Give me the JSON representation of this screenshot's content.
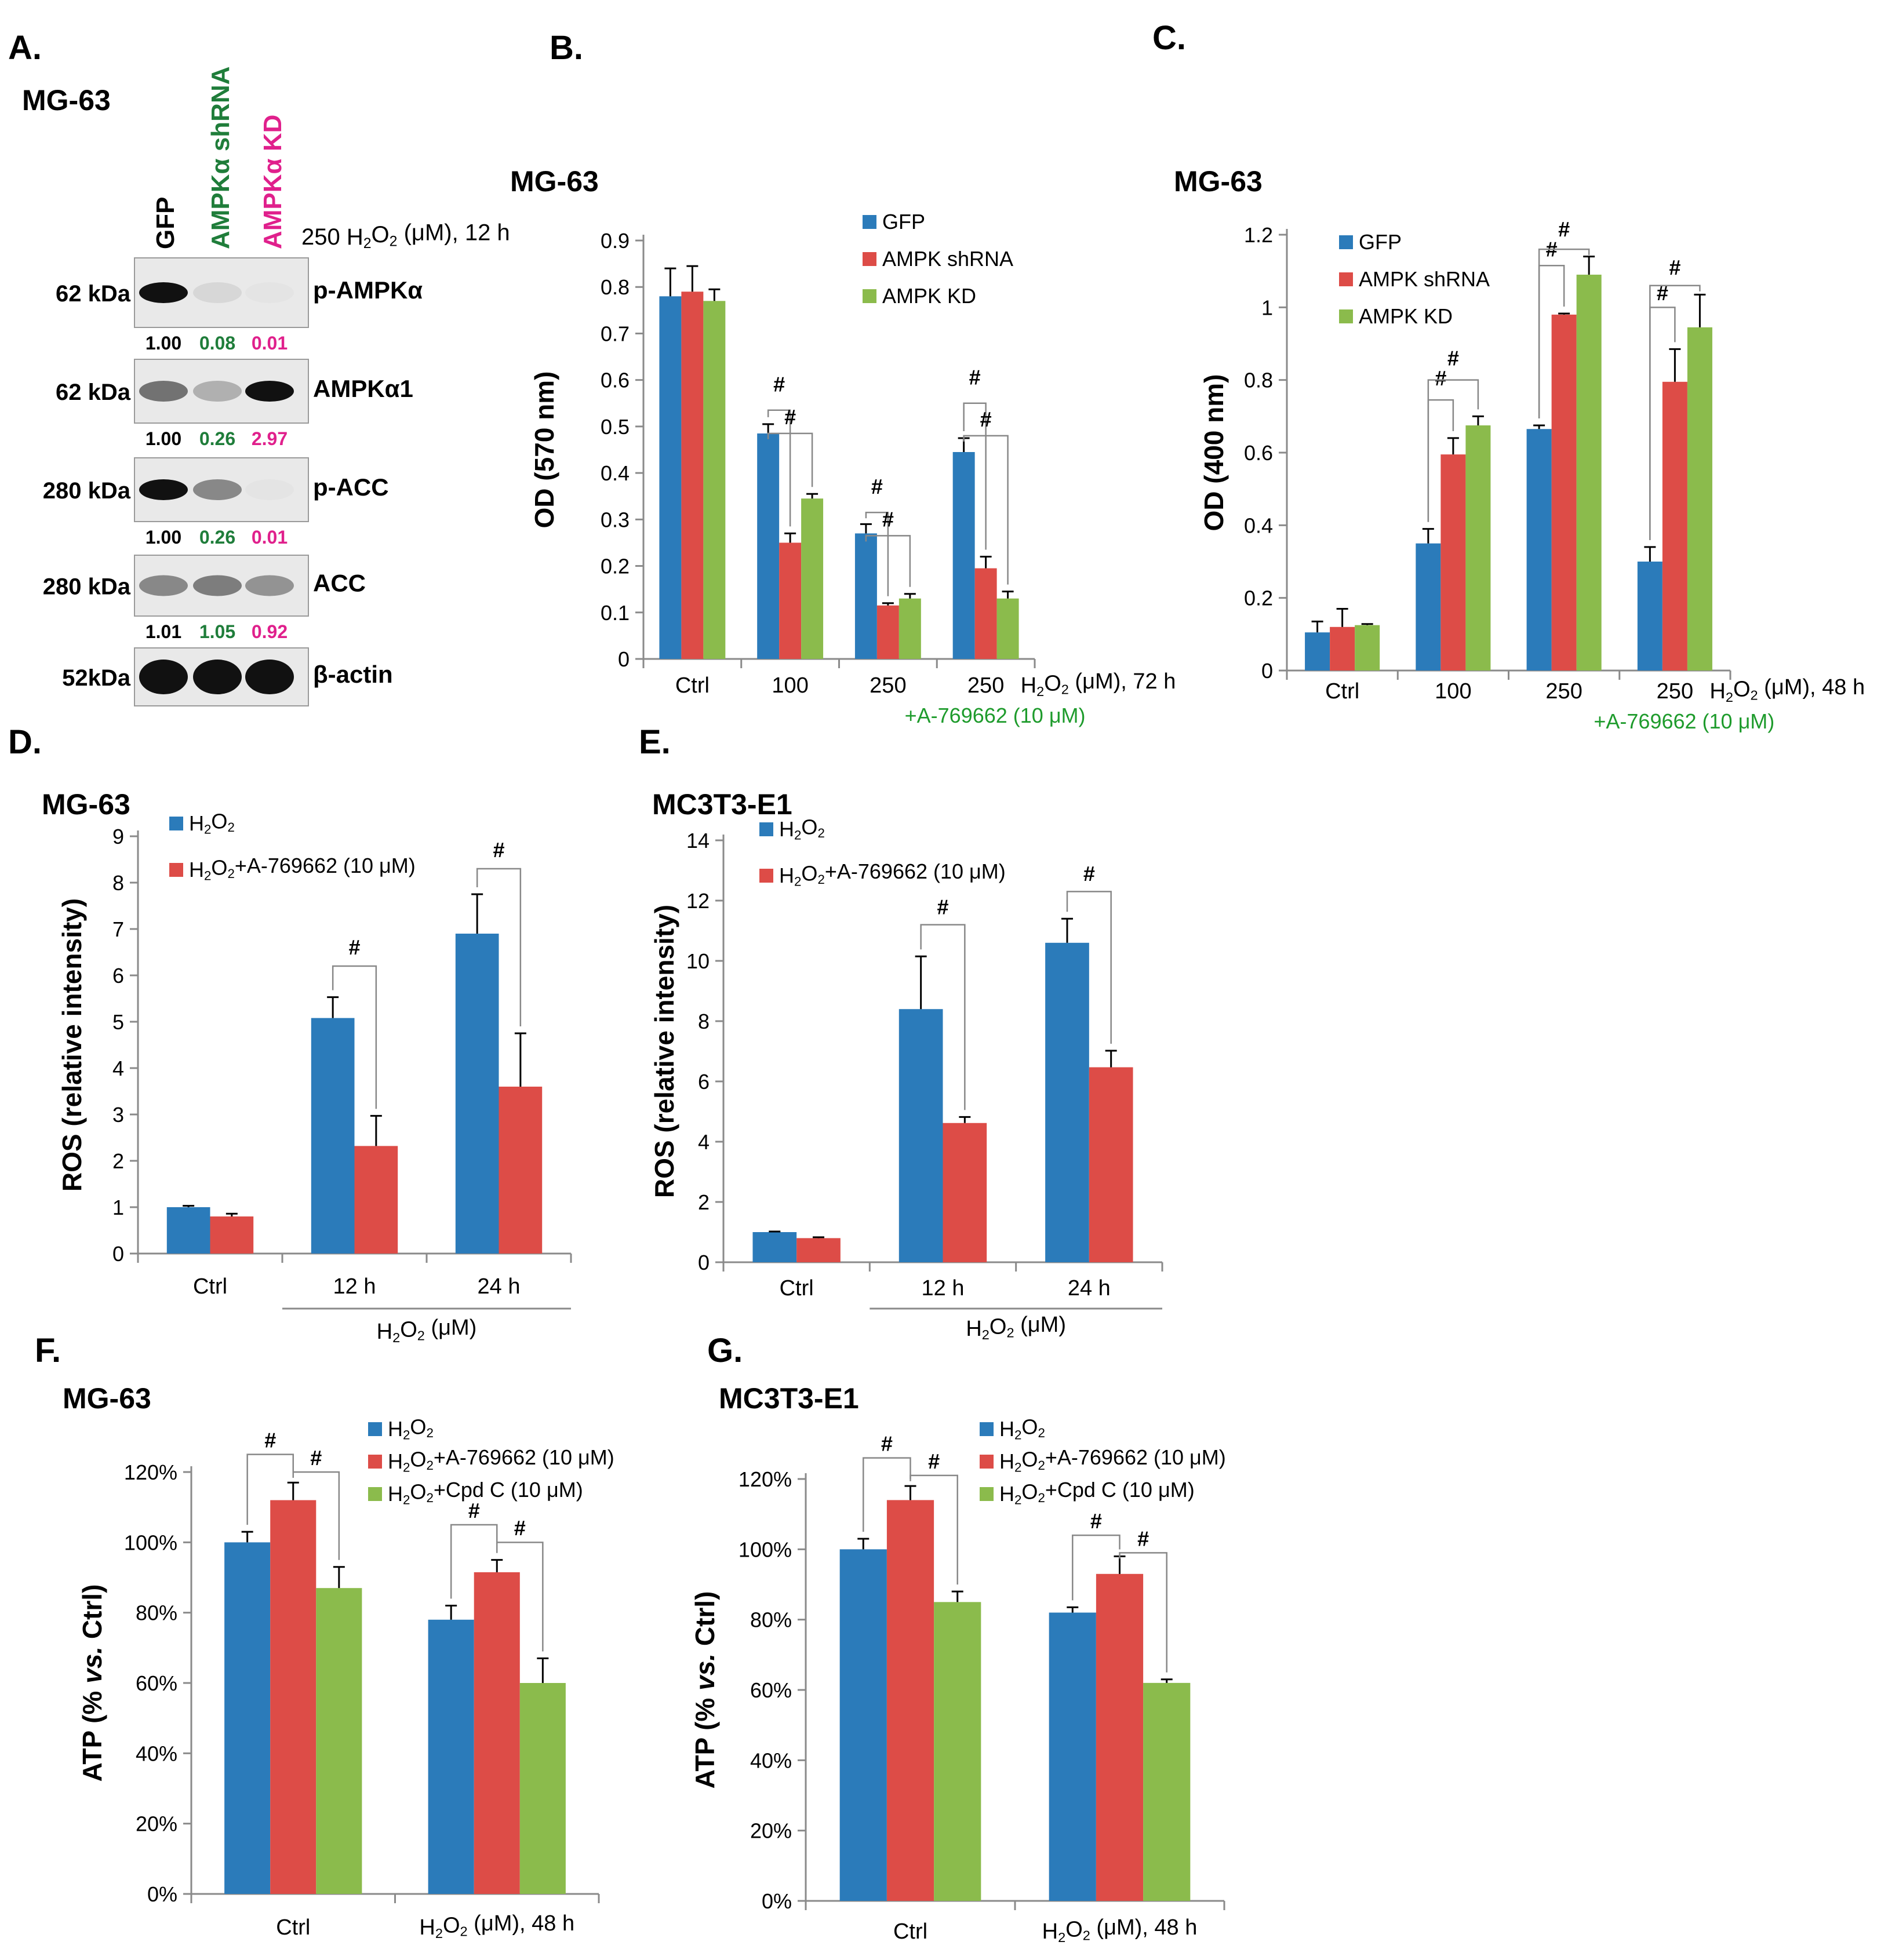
{
  "panel_labels": {
    "A": "A.",
    "B": "B.",
    "C": "C.",
    "D": "D.",
    "E": "E.",
    "F": "F.",
    "G": "G."
  },
  "colors": {
    "blue": "#2b7bba",
    "red": "#dd4c47",
    "green": "#8bbb4c",
    "shrna_text": "#1f7d3a",
    "kd_text": "#e0208c",
    "drug_text": "#1e9b2c"
  },
  "western": {
    "cell_line": "MG-63",
    "lanes": [
      "GFP",
      "AMPKα shRNA",
      "AMPKα KD"
    ],
    "treatment": "250  H2O2 (μM), 12 h",
    "blots": [
      {
        "kda": "62 kDa",
        "name": "p-AMPKα",
        "values": [
          "1.00",
          "0.08",
          "0.01"
        ],
        "intensity": [
          1.0,
          0.08,
          0.01
        ]
      },
      {
        "kda": "62 kDa",
        "name": "AMPKα1",
        "values": [
          "1.00",
          "0.26",
          "2.97"
        ],
        "intensity": [
          0.55,
          0.26,
          1.0
        ]
      },
      {
        "kda": "280 kDa",
        "name": "p-ACC",
        "values": [
          "1.00",
          "0.26",
          "0.01"
        ],
        "intensity": [
          1.0,
          0.45,
          0.01
        ]
      },
      {
        "kda": "280 kDa",
        "name": "ACC",
        "values": [
          "1.01",
          "1.05",
          "0.92"
        ],
        "intensity": [
          0.45,
          0.5,
          0.4
        ]
      },
      {
        "kda": "52kDa",
        "name": "β-actin",
        "values": [],
        "intensity": [
          1.0,
          1.0,
          1.0
        ]
      }
    ]
  },
  "chart_data": [
    {
      "id": "B",
      "type": "bar",
      "title": "MG-63",
      "ylabel": "OD (570 nm)",
      "ylim": [
        0,
        0.9
      ],
      "yticks": [
        "0",
        "0.1",
        "0.2",
        "0.3",
        "0.4",
        "0.5",
        "0.6",
        "0.7",
        "0.8",
        "0.9"
      ],
      "categories": [
        "Ctrl",
        "100",
        "250",
        "250"
      ],
      "xnote": "H2O2 (μM), 72 h",
      "xnote2": "+A-769662 (10 μM)",
      "series": [
        {
          "name": "GFP",
          "values": [
            0.78,
            0.485,
            0.27,
            0.445
          ],
          "errors": [
            0.06,
            0.02,
            0.02,
            0.03
          ]
        },
        {
          "name": "AMPK shRNA",
          "values": [
            0.79,
            0.25,
            0.115,
            0.195
          ],
          "errors": [
            0.055,
            0.02,
            0.005,
            0.025
          ]
        },
        {
          "name": "AMPK KD",
          "values": [
            0.77,
            0.345,
            0.13,
            0.13
          ],
          "errors": [
            0.025,
            0.01,
            0.01,
            0.015
          ]
        }
      ],
      "sig": "#"
    },
    {
      "id": "C",
      "type": "bar",
      "title": "MG-63",
      "ylabel": "OD (400 nm)",
      "ylim": [
        0,
        1.2
      ],
      "yticks": [
        "0",
        "0.2",
        "0.4",
        "0.6",
        "0.8",
        "1",
        "1.2"
      ],
      "categories": [
        "Ctrl",
        "100",
        "250",
        "250"
      ],
      "xnote": "H2O2 (μM), 48 h",
      "xnote2": "+A-769662 (10 μM)",
      "series": [
        {
          "name": "GFP",
          "values": [
            0.105,
            0.35,
            0.665,
            0.3
          ],
          "errors": [
            0.03,
            0.04,
            0.01,
            0.04
          ]
        },
        {
          "name": "AMPK shRNA",
          "values": [
            0.12,
            0.595,
            0.98,
            0.795
          ],
          "errors": [
            0.05,
            0.045,
            0.003,
            0.09
          ]
        },
        {
          "name": "AMPK KD",
          "values": [
            0.125,
            0.675,
            1.09,
            0.945
          ],
          "errors": [
            0.003,
            0.025,
            0.05,
            0.09
          ]
        }
      ],
      "sig": "#"
    },
    {
      "id": "D",
      "type": "bar",
      "title": "MG-63",
      "ylabel": "ROS (relative intensity)",
      "ylim": [
        0,
        9
      ],
      "yticks": [
        "0",
        "1",
        "2",
        "3",
        "4",
        "5",
        "6",
        "7",
        "8",
        "9"
      ],
      "categories": [
        "Ctrl",
        "12 h",
        "24 h"
      ],
      "xgroup": "H2O2 (μM)",
      "series": [
        {
          "name": "H2O2",
          "values": [
            1.0,
            5.08,
            6.9
          ],
          "errors": [
            0.03,
            0.45,
            0.85
          ]
        },
        {
          "name": "H2O2+A-769662 (10 μM)",
          "values": [
            0.8,
            2.32,
            3.6
          ],
          "errors": [
            0.06,
            0.65,
            1.15
          ]
        }
      ],
      "sig": "#"
    },
    {
      "id": "E",
      "type": "bar",
      "title": "MC3T3-E1",
      "ylabel": "ROS (relative intensity)",
      "ylim": [
        0,
        14
      ],
      "yticks": [
        "0",
        "2",
        "4",
        "6",
        "8",
        "10",
        "12",
        "14"
      ],
      "categories": [
        "Ctrl",
        "12 h",
        "24 h"
      ],
      "xgroup": "H2O2 (μM)",
      "series": [
        {
          "name": "H2O2",
          "values": [
            1.0,
            8.4,
            10.6
          ],
          "errors": [
            0.02,
            1.75,
            0.8
          ]
        },
        {
          "name": "H2O2+A-769662 (10 μM)",
          "values": [
            0.8,
            4.62,
            6.47
          ],
          "errors": [
            0.03,
            0.2,
            0.55
          ]
        }
      ],
      "sig": "#"
    },
    {
      "id": "F",
      "type": "bar",
      "title": "MG-63",
      "ylabel": "ATP (% vs. Ctrl)",
      "ylim": [
        0,
        120
      ],
      "yticks": [
        "0%",
        "20%",
        "40%",
        "60%",
        "80%",
        "100%",
        "120%"
      ],
      "categories": [
        "Ctrl",
        "H2O2 (μM), 48 h"
      ],
      "series": [
        {
          "name": "H2O2",
          "values": [
            100,
            78
          ],
          "errors": [
            3,
            4
          ]
        },
        {
          "name": "H2O2+A-769662 (10 μM)",
          "values": [
            112,
            91.5
          ],
          "errors": [
            5,
            3.5
          ]
        },
        {
          "name": "H2O2+Cpd C (10 μM)",
          "values": [
            87,
            60
          ],
          "errors": [
            6,
            7
          ]
        }
      ],
      "sig": "#"
    },
    {
      "id": "G",
      "type": "bar",
      "title": "MC3T3-E1",
      "ylabel": "ATP (% vs. Ctrl)",
      "ylim": [
        0,
        120
      ],
      "yticks": [
        "0%",
        "20%",
        "40%",
        "60%",
        "80%",
        "100%",
        "120%"
      ],
      "categories": [
        "Ctrl",
        "H2O2 (μM), 48 h"
      ],
      "series": [
        {
          "name": "H2O2",
          "values": [
            100,
            82
          ],
          "errors": [
            3,
            1.5
          ]
        },
        {
          "name": "H2O2+A-769662 (10 μM)",
          "values": [
            114,
            93
          ],
          "errors": [
            4,
            5
          ]
        },
        {
          "name": "H2O2+Cpd C (10 μM)",
          "values": [
            85,
            62
          ],
          "errors": [
            3,
            1
          ]
        }
      ],
      "sig": "#"
    }
  ]
}
